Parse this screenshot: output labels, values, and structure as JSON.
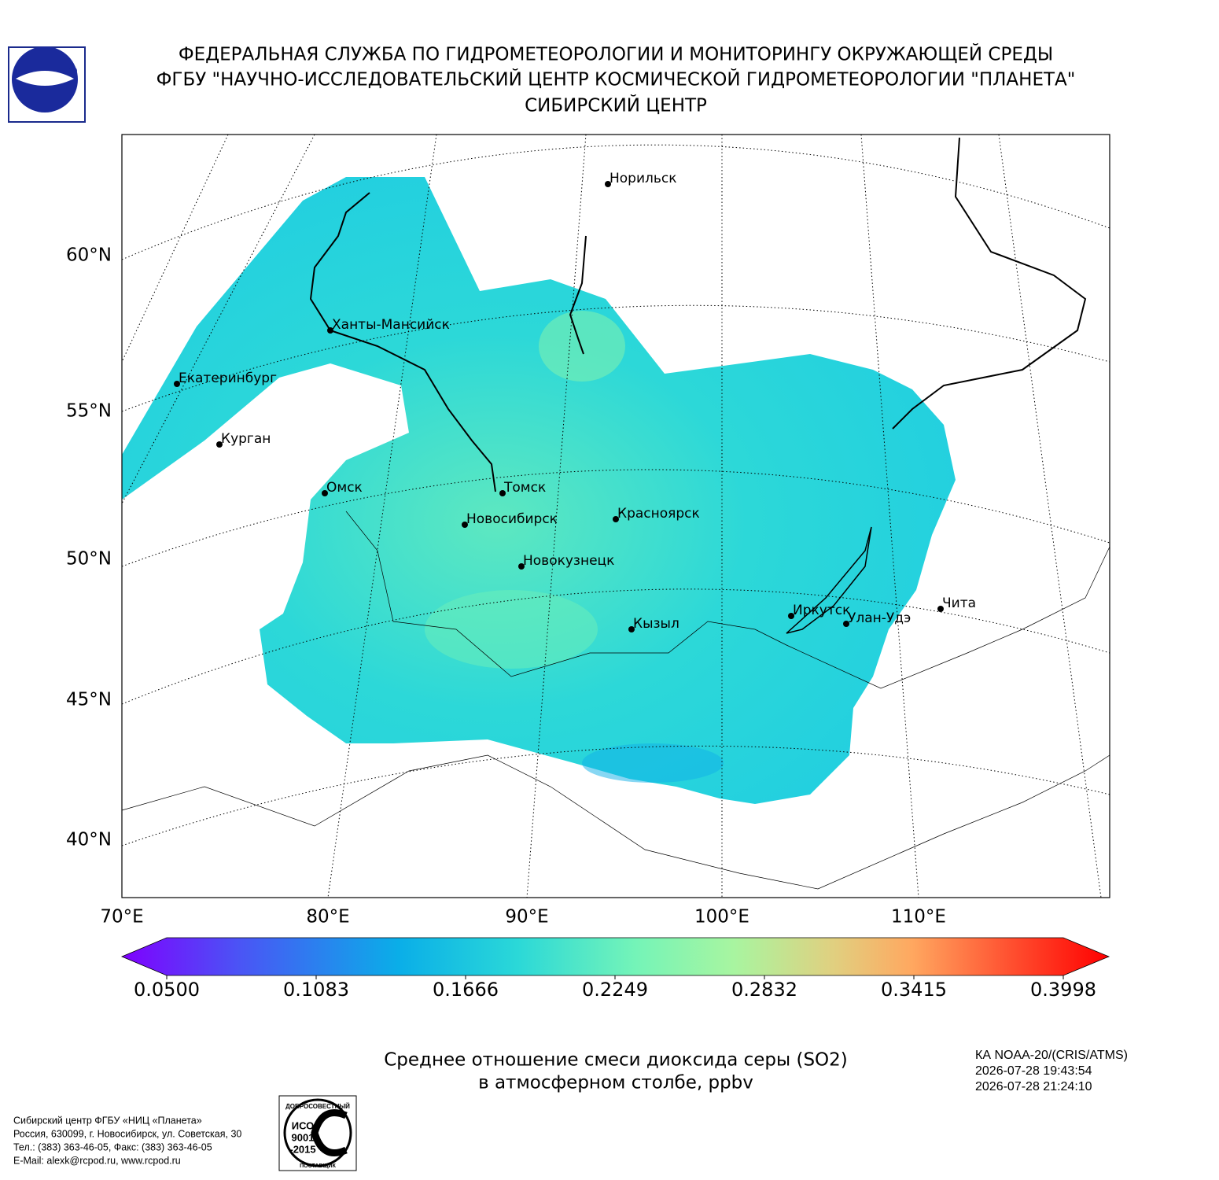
{
  "header": {
    "lines": [
      "ФЕДЕРАЛЬНАЯ СЛУЖБА ПО ГИДРОМЕТЕОРОЛОГИИ И МОНИТОРИНГУ ОКРУЖАЮЩЕЙ СРЕДЫ",
      "ФГБУ \"НАУЧНО-ИССЛЕДОВАТЕЛЬСКИЙ ЦЕНТР КОСМИЧЕСКОЙ ГИДРОМЕТЕОРОЛОГИИ \"ПЛАНЕТА\"",
      "СИБИРСКИЙ ЦЕНТР"
    ]
  },
  "map": {
    "cities": [
      "Норильск",
      "Ханты-Мансийск",
      "Екатеринбург",
      "Курган",
      "Омск",
      "Томск",
      "Новосибирск",
      "Красноярск",
      "Новокузнецк",
      "Кызыл",
      "Иркутск",
      "Улан-Удэ",
      "Чита"
    ],
    "lat_labels": [
      "60°N",
      "55°N",
      "50°N",
      "45°N",
      "40°N"
    ],
    "lon_labels": [
      "70°E",
      "80°E",
      "90°E",
      "100°E",
      "110°E"
    ]
  },
  "colorbar": {
    "lim": [
      0.05,
      0.3998
    ],
    "ticks": [
      {
        "value": 0.05,
        "label": "0.0500"
      },
      {
        "value": 0.1083,
        "label": "0.1083"
      },
      {
        "value": 0.1666,
        "label": "0.1666"
      },
      {
        "value": 0.2249,
        "label": "0.2249"
      },
      {
        "value": 0.2832,
        "label": "0.2832"
      },
      {
        "value": 0.3415,
        "label": "0.3415"
      },
      {
        "value": 0.3998,
        "label": "0.3998"
      }
    ]
  },
  "caption": {
    "lines": [
      "Среднее отношение смеси диоксида серы (SO2)",
      "в атмосферном столбе, ppbv"
    ]
  },
  "satellite": {
    "lines": [
      "КА NOAA-20/(CRIS/ATMS)",
      "2026-07-28 19:43:54",
      "2026-07-28 21:24:10"
    ]
  },
  "footer": {
    "lines": [
      "Сибирский центр ФГБУ «НИЦ «Планета»",
      "Россия, 630099, г. Новосибирск, ул. Советская, 30",
      "Тел.: (383) 363-46-05, Факс: (383) 363-46-05",
      "E-Mail: alexk@rcpod.ru, www.rcpod.ru"
    ]
  },
  "badge": {
    "lines": [
      "ДОБРОСОВЕСТНЫЙ",
      "ИСО",
      "9001",
      "-2015",
      "ПОСТАВЩИК"
    ]
  }
}
